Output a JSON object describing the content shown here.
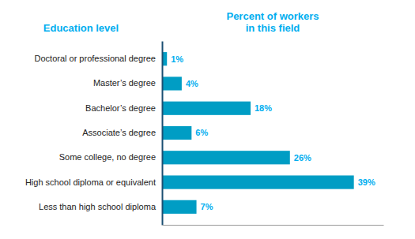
{
  "chart_data": {
    "type": "bar",
    "orientation": "horizontal",
    "y_label": "Education level",
    "x_label": "Percent of workers\nin this field",
    "categories": [
      "Doctoral or professional degree",
      "Master’s degree",
      "Bachelor’s degree",
      "Associate’s degree",
      "Some college, no degree",
      "High school diploma or equivalent",
      "Less than high school diploma"
    ],
    "values": [
      1,
      4,
      18,
      6,
      26,
      39,
      7
    ],
    "value_labels": [
      "1%",
      "4%",
      "18%",
      "6%",
      "26%",
      "39%",
      "7%"
    ],
    "data_labels": true,
    "color": "#009dc4",
    "xlim": [
      0,
      45
    ],
    "tick_labels": "y"
  }
}
